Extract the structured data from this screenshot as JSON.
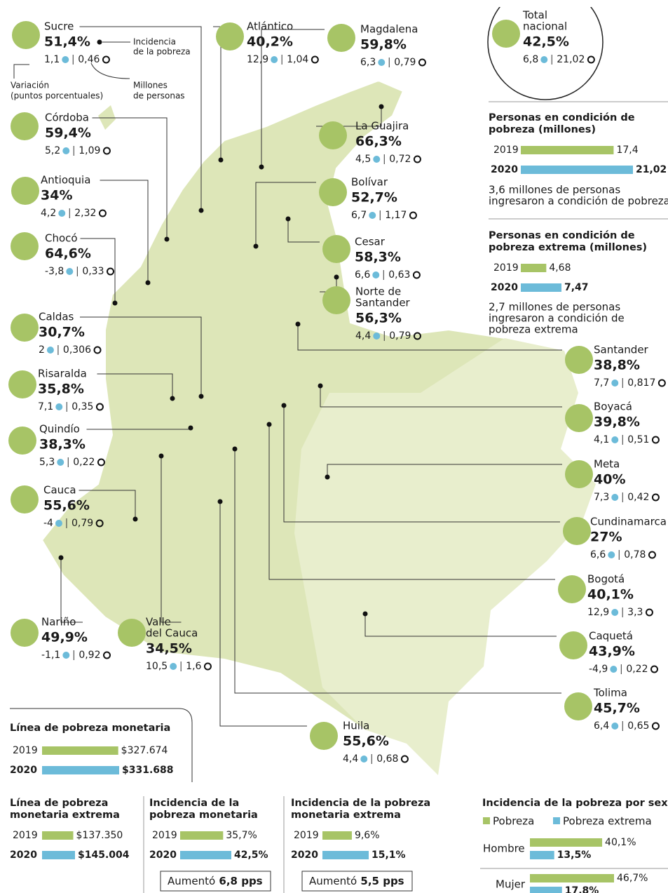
{
  "total": {
    "label": [
      "Total",
      "nacional"
    ],
    "incidence": "42,5%",
    "variation": "6,8",
    "millions": "21,02"
  },
  "legend": {
    "incidence": [
      "Incidencia",
      "de la pobreza"
    ],
    "variation": [
      "Variación",
      "(puntos porcentuales)"
    ],
    "millions": [
      "Millones",
      "de personas"
    ]
  },
  "departments": [
    {
      "name": [
        "Sucre"
      ],
      "incidence": "51,4%",
      "variation": "1,1",
      "millions": "0,46"
    },
    {
      "name": [
        "Atlántico"
      ],
      "incidence": "40,2%",
      "variation": "12,9",
      "millions": "1,04"
    },
    {
      "name": [
        "Magdalena"
      ],
      "incidence": "59,8%",
      "variation": "6,3",
      "millions": "0,79"
    },
    {
      "name": [
        "Córdoba"
      ],
      "incidence": "59,4%",
      "variation": "5,2",
      "millions": "1,09"
    },
    {
      "name": [
        "La Guajira"
      ],
      "incidence": "66,3%",
      "variation": "4,5",
      "millions": "0,72"
    },
    {
      "name": [
        "Antioquia"
      ],
      "incidence": "34%",
      "variation": "4,2",
      "millions": "2,32"
    },
    {
      "name": [
        "Bolívar"
      ],
      "incidence": "52,7%",
      "variation": "6,7",
      "millions": "1,17"
    },
    {
      "name": [
        "Chocó"
      ],
      "incidence": "64,6%",
      "variation": "-3,8",
      "millions": "0,33"
    },
    {
      "name": [
        "Cesar"
      ],
      "incidence": "58,3%",
      "variation": "6,6",
      "millions": "0,63"
    },
    {
      "name": [
        "Norte de",
        "Santander"
      ],
      "incidence": "56,3%",
      "variation": "4,4",
      "millions": "0,79"
    },
    {
      "name": [
        "Caldas"
      ],
      "incidence": "30,7%",
      "variation": "2",
      "millions": "0,306"
    },
    {
      "name": [
        "Santander"
      ],
      "incidence": "38,8%",
      "variation": "7,7",
      "millions": "0,817"
    },
    {
      "name": [
        "Risaralda"
      ],
      "incidence": "35,8%",
      "variation": "7,1",
      "millions": "0,35"
    },
    {
      "name": [
        "Boyacá"
      ],
      "incidence": "39,8%",
      "variation": "4,1",
      "millions": "0,51"
    },
    {
      "name": [
        "Quindío"
      ],
      "incidence": "38,3%",
      "variation": "5,3",
      "millions": "0,22"
    },
    {
      "name": [
        "Meta"
      ],
      "incidence": "40%",
      "variation": "7,3",
      "millions": "0,42"
    },
    {
      "name": [
        "Cauca"
      ],
      "incidence": "55,6%",
      "variation": "-4",
      "millions": "0,79"
    },
    {
      "name": [
        "Cundinamarca"
      ],
      "incidence": "27%",
      "variation": "6,6",
      "millions": "0,78"
    },
    {
      "name": [
        "Bogotá"
      ],
      "incidence": "40,1%",
      "variation": "12,9",
      "millions": "3,3"
    },
    {
      "name": [
        "Nariño"
      ],
      "incidence": "49,9%",
      "variation": "-1,1",
      "millions": "0,92"
    },
    {
      "name": [
        "Valle",
        "del Cauca"
      ],
      "incidence": "34,5%",
      "variation": "10,5",
      "millions": "1,6"
    },
    {
      "name": [
        "Caquetá"
      ],
      "incidence": "43,9%",
      "variation": "-4,9",
      "millions": "0,22"
    },
    {
      "name": [
        "Tolima"
      ],
      "incidence": "45,7%",
      "variation": "6,4",
      "millions": "0,65"
    },
    {
      "name": [
        "Huila"
      ],
      "incidence": "55,6%",
      "variation": "4,4",
      "millions": "0,68"
    }
  ],
  "panels": [
    {
      "title": [
        "Personas en condición de",
        "pobreza (millones)"
      ],
      "rows": [
        {
          "year": "2019",
          "value": 17.4,
          "label": "17,4"
        },
        {
          "year": "2020",
          "value": 21.02,
          "label": "21,02"
        }
      ],
      "note": [
        "3,6 millones de personas",
        "ingresaron a condición de pobreza"
      ]
    },
    {
      "title": [
        "Personas en condición de",
        "pobreza extrema (millones)"
      ],
      "rows": [
        {
          "year": "2019",
          "value": 4.68,
          "label": "4,68"
        },
        {
          "year": "2020",
          "value": 7.47,
          "label": "7,47"
        }
      ],
      "note": [
        "2,7 millones de personas",
        "ingresaron a condición de",
        "pobreza extrema"
      ]
    },
    {
      "title": [
        "Línea de pobreza monetaria"
      ],
      "rows": [
        {
          "year": "2019",
          "value": 327674,
          "label": "$327.674"
        },
        {
          "year": "2020",
          "value": 331688,
          "label": "$331.688"
        }
      ]
    },
    {
      "title": [
        "Línea de pobreza",
        "monetaria extrema"
      ],
      "rows": [
        {
          "year": "2019",
          "value": 137350,
          "label": "$137.350"
        },
        {
          "year": "2020",
          "value": 145004,
          "label": "$145.004"
        }
      ]
    },
    {
      "title": [
        "Incidencia de la",
        "pobreza monetaria"
      ],
      "rows": [
        {
          "year": "2019",
          "value": 35.7,
          "label": "35,7%"
        },
        {
          "year": "2020",
          "value": 42.5,
          "label": "42,5%"
        }
      ],
      "change": [
        "Aumentó",
        "6,8 pps"
      ]
    },
    {
      "title": [
        "Incidencia de la pobreza",
        "monetaria extrema"
      ],
      "rows": [
        {
          "year": "2019",
          "value": 9.6,
          "label": "9,6%"
        },
        {
          "year": "2020",
          "value": 15.1,
          "label": "15,1%"
        }
      ],
      "change": [
        "Aumentó",
        "5,5 pps"
      ]
    }
  ],
  "sex": {
    "title": "Incidencia de la pobreza por sexo",
    "legend": [
      "Pobreza",
      "Pobreza extrema"
    ],
    "rows": [
      {
        "name": "Hombre",
        "values": [
          40.1,
          13.5
        ],
        "labels": [
          "40,1%",
          "13,5%"
        ]
      },
      {
        "name": "Mujer",
        "values": [
          46.7,
          17.8
        ],
        "labels": [
          "46,7%",
          "17,8%"
        ]
      }
    ]
  }
}
